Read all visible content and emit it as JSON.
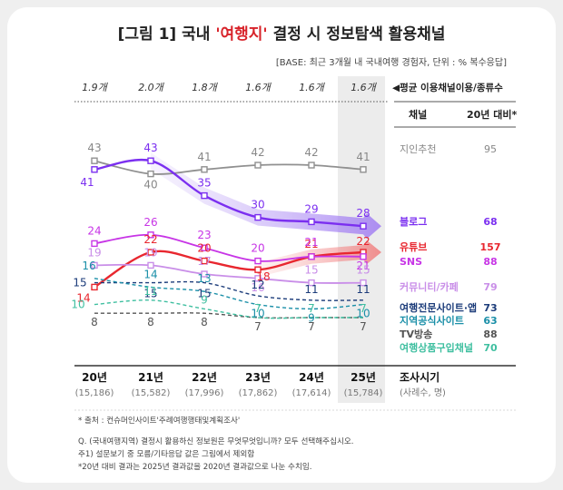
{
  "title_prefix": "[그림 1] 국내 ",
  "title_highlight": "'여행지'",
  "title_suffix": " 결정 시 정보탐색 활용채널",
  "base_note": "[BASE: 최근 3개월 내 국내여행 경험자, 단위 : % 복수응답]",
  "avg_label": "◀평균 이용채널이용/종류수",
  "avg_values": [
    "1.9개",
    "2.0개",
    "1.8개",
    "1.6개",
    "1.6개",
    "1.6개"
  ],
  "table_header": {
    "channel": "채널",
    "vs": "20년 대비*"
  },
  "x_axis_title": "조사시기",
  "x_axis_subtitle": "(사례수, 명)",
  "notes": [
    "* 출처 : 컨슈머인사이트'주례여행행태및계획조사'",
    "Q. (국내여행지역) 결정시 활용하신 정보원은 무엇무엇입니까? 모두 선택해주십시오.",
    "주1) 설문보기 중 모름/기타응답 값은 그림에서 제외함",
    "*20년 대비 결과는 2025년 결과값을 2020년 결과값으로 나눈 수치임."
  ],
  "chart_data": {
    "type": "line",
    "categories": [
      "20년",
      "21년",
      "22년",
      "23년",
      "24년",
      "25년"
    ],
    "sample_sizes": [
      "(15,186)",
      "(15,582)",
      "(17,996)",
      "(17,862)",
      "(17,614)",
      "(15,784)"
    ],
    "series": [
      {
        "name": "지인추천",
        "values": [
          43,
          40,
          41,
          42,
          42,
          41
        ],
        "label_values": [
          43,
          40,
          41,
          42,
          42,
          41
        ],
        "vs2020": "95",
        "color": "#909090",
        "label_color": "#888888",
        "dashed": false,
        "bold": false
      },
      {
        "name": "블로그",
        "values": [
          41,
          43,
          35,
          30,
          29,
          28
        ],
        "label_values": [
          41,
          43,
          35,
          30,
          29,
          28
        ],
        "vs2020": "68",
        "color": "#7b2ff0",
        "label_color": "#7b2ff0",
        "dashed": false,
        "bold": true
      },
      {
        "name": "유튜브",
        "values": [
          14,
          22,
          20,
          18,
          21,
          22
        ],
        "label_values": [
          14,
          22,
          20,
          18,
          21,
          22
        ],
        "vs2020": "157",
        "color": "#e8272f",
        "label_color": "#e8272f",
        "dashed": false,
        "bold": true
      },
      {
        "name": "SNS",
        "values": [
          24,
          26,
          23,
          20,
          21,
          21
        ],
        "label_values": [
          24,
          26,
          23,
          20,
          21,
          21
        ],
        "vs2020": "88",
        "color": "#c735e6",
        "label_color": "#c735e6",
        "dashed": false,
        "bold": false
      },
      {
        "name": "커뮤니티/카페",
        "values": [
          19,
          19,
          17,
          16,
          15,
          15
        ],
        "label_values": [
          19,
          19,
          17,
          16,
          15,
          15
        ],
        "vs2020": "79",
        "color": "#c98ee8",
        "label_color": "#c98ee8",
        "dashed": false,
        "bold": false
      },
      {
        "name": "여행전문사이트·앱",
        "values": [
          15,
          15,
          15,
          12,
          11,
          11
        ],
        "label_values": [
          15,
          15,
          15,
          12,
          11,
          11
        ],
        "vs2020": "73",
        "color": "#1c3c7a",
        "label_color": "#1c3c7a",
        "dashed": true,
        "bold": false
      },
      {
        "name": "지역공식사이트",
        "values": [
          16,
          14,
          13,
          10,
          9,
          10
        ],
        "label_values": [
          16,
          14,
          13,
          10,
          9,
          10
        ],
        "vs2020": "63",
        "color": "#1a8fa8",
        "label_color": "#1a8fa8",
        "dashed": true,
        "bold": false
      },
      {
        "name": "TV방송",
        "values": [
          8,
          8,
          8,
          7,
          7,
          7
        ],
        "label_values": [
          8,
          8,
          8,
          7,
          7,
          7
        ],
        "vs2020": "88",
        "color": "#555555",
        "label_color": "#555555",
        "dashed": true,
        "bold": false
      },
      {
        "name": "여행상품구입채널",
        "values": [
          10,
          11,
          9,
          7,
          7,
          7
        ],
        "label_values": [
          10,
          11,
          9,
          7,
          7,
          7
        ],
        "vs2020": "70",
        "color": "#3fbfa0",
        "label_color": "#3fbfa0",
        "dashed": true,
        "bold": false
      }
    ],
    "highlight_category": "25년",
    "trend_arrows": [
      "블로그",
      "유튜브"
    ]
  }
}
